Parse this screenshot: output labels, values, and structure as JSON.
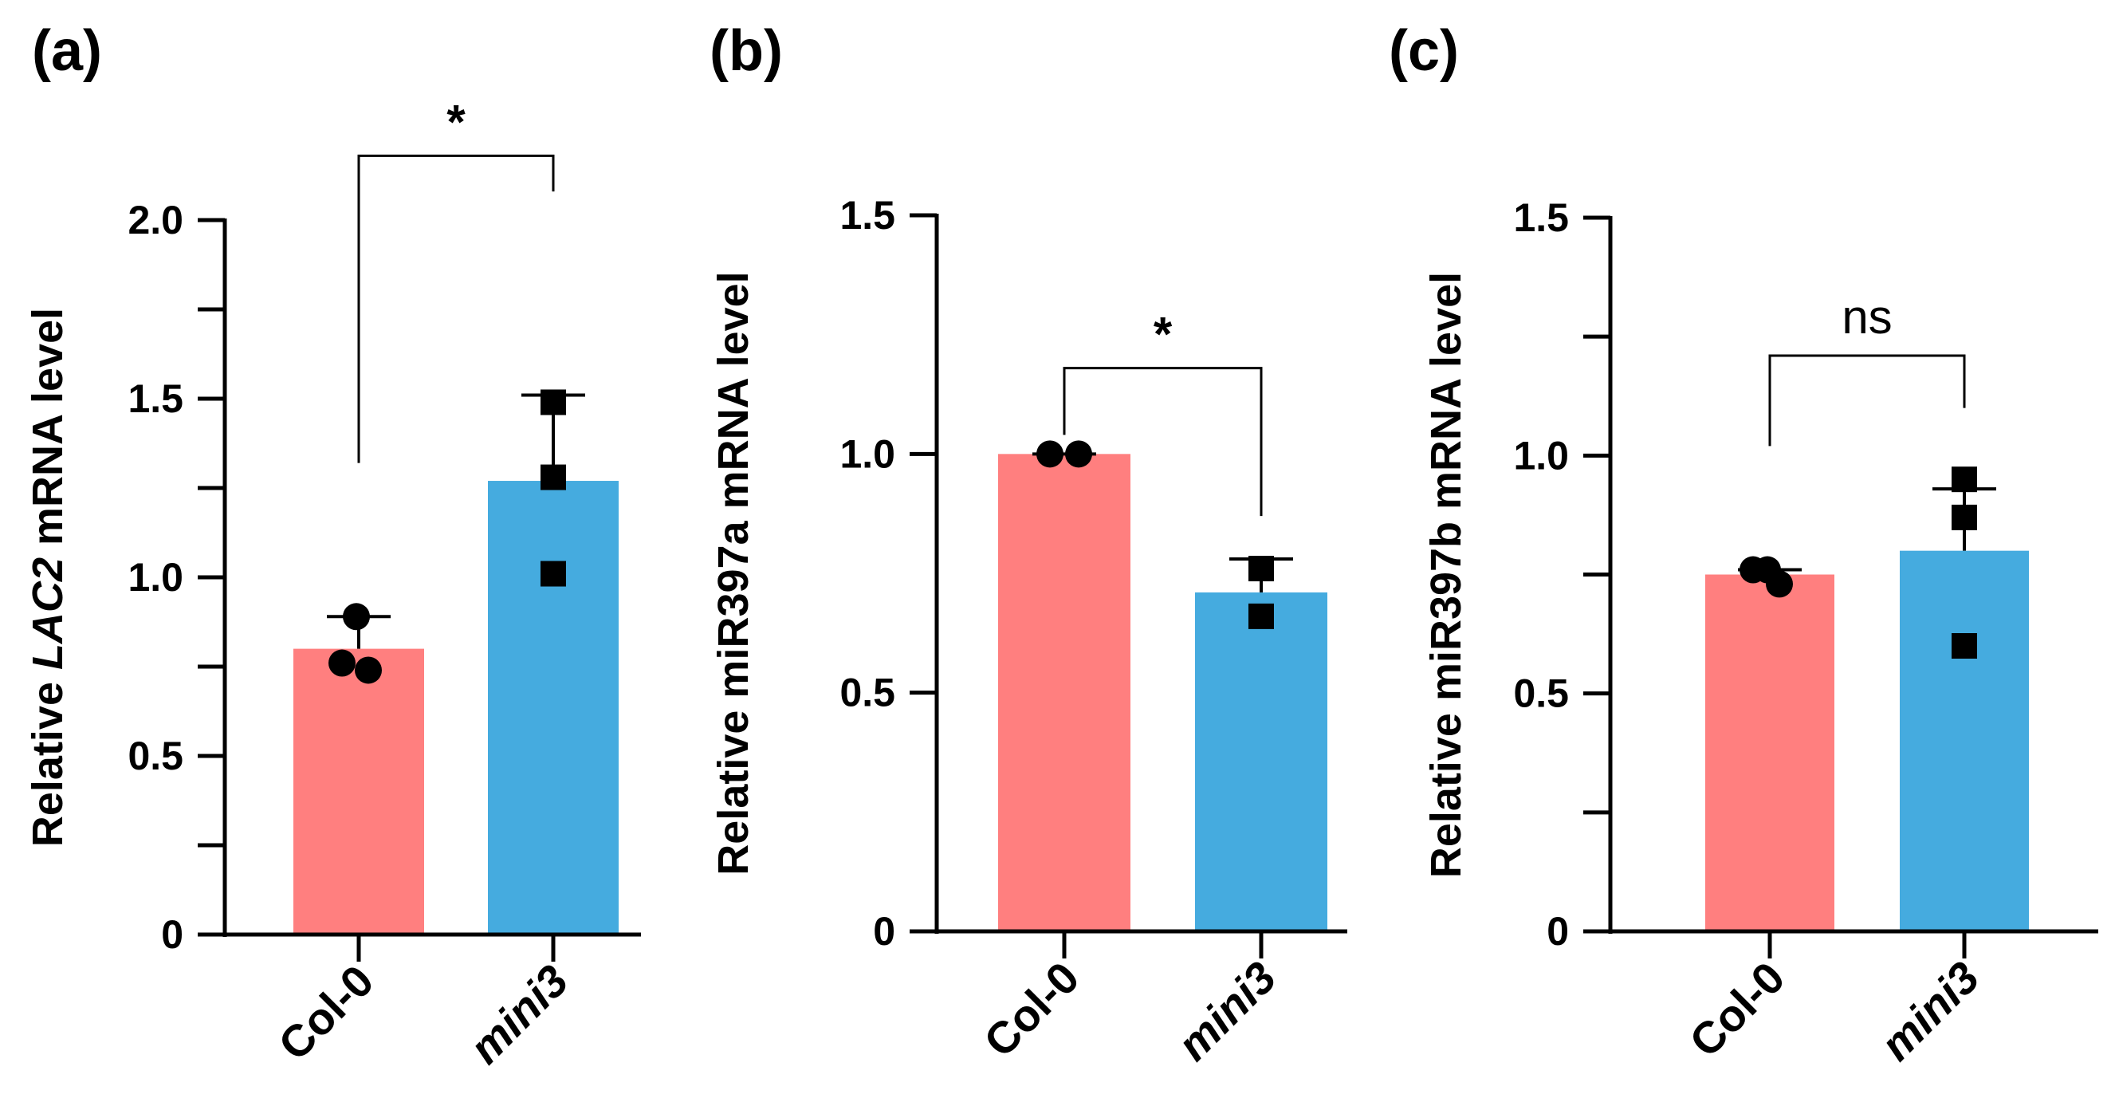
{
  "figure": {
    "colors": {
      "col0": "#FF7F7F",
      "mini3": "#45ABDF",
      "axis": "#000000"
    }
  },
  "chart_data": [
    {
      "panel": "(a)",
      "type": "bar",
      "categories": [
        "Col-0",
        "mini3"
      ],
      "italic_categories": [
        false,
        true
      ],
      "values": [
        0.8,
        1.27
      ],
      "errors": [
        0.09,
        0.24
      ],
      "points": [
        [
          0.89,
          0.76,
          0.74
        ],
        [
          1.49,
          1.28,
          1.01
        ]
      ],
      "markers": [
        "circle",
        "square"
      ],
      "ylabel_parts": [
        {
          "text": "Relative ",
          "italic": false
        },
        {
          "text": "LAC2",
          "italic": true
        },
        {
          "text": " mRNA level",
          "italic": false
        }
      ],
      "ylim": [
        0,
        2.0
      ],
      "yticks": [
        0,
        0.5,
        1.0,
        1.5,
        2.0
      ],
      "ytick_labels": [
        "0",
        "0.5",
        "1.0",
        "1.5",
        "2.0"
      ],
      "minor_yticks": [
        0.25,
        0.75,
        1.25,
        1.75
      ],
      "significance": {
        "text": "*",
        "bar_y": 2.18,
        "left_y": 1.32,
        "right_y": 2.08
      }
    },
    {
      "panel": "(b)",
      "type": "bar",
      "categories": [
        "Col-0",
        "mini3"
      ],
      "italic_categories": [
        false,
        true
      ],
      "values": [
        1.0,
        0.71
      ],
      "errors": [
        0.0,
        0.07
      ],
      "points": [
        [
          1.0,
          1.0
        ],
        [
          0.76,
          0.66
        ]
      ],
      "markers": [
        "circle",
        "square"
      ],
      "ylabel_parts": [
        {
          "text": "Relative miR397a mRNA level",
          "italic": false
        }
      ],
      "ylim": [
        0,
        1.5
      ],
      "yticks": [
        0,
        0.5,
        1.0,
        1.5
      ],
      "ytick_labels": [
        "0",
        "0.5",
        "1.0",
        "1.5"
      ],
      "minor_yticks": [],
      "significance": {
        "text": "*",
        "bar_y": 1.18,
        "left_y": 1.04,
        "right_y": 0.87
      }
    },
    {
      "panel": "(c)",
      "type": "bar",
      "categories": [
        "Col-0",
        "mini3"
      ],
      "italic_categories": [
        false,
        true
      ],
      "values": [
        0.75,
        0.8
      ],
      "errors": [
        0.01,
        0.13
      ],
      "points": [
        [
          0.76,
          0.76,
          0.73
        ],
        [
          0.95,
          0.87,
          0.6
        ]
      ],
      "markers": [
        "circle",
        "square"
      ],
      "ylabel_parts": [
        {
          "text": "Relative miR397b mRNA level",
          "italic": false
        }
      ],
      "ylim": [
        0,
        1.5
      ],
      "yticks": [
        0,
        0.5,
        1.0,
        1.5
      ],
      "ytick_labels": [
        "0",
        "0.5",
        "1.0",
        "1.5"
      ],
      "minor_yticks": [
        0.25,
        0.75,
        1.25
      ],
      "significance": {
        "text": "ns",
        "bar_y": 1.21,
        "left_y": 1.02,
        "right_y": 1.1
      }
    }
  ]
}
